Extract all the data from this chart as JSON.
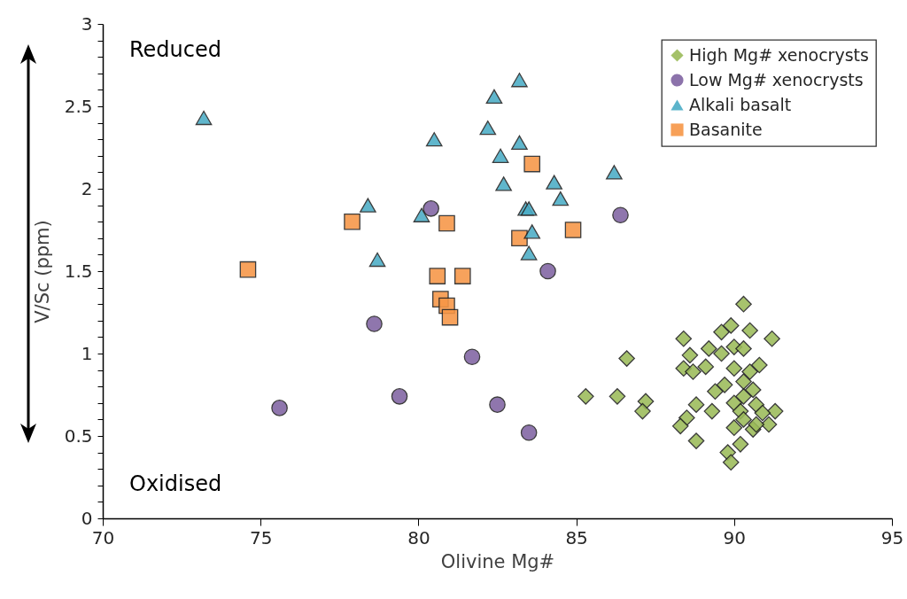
{
  "chart_data": {
    "type": "scatter",
    "xlabel": "Olivine Mg#",
    "ylabel": "V/Sc (ppm)",
    "xlim": [
      70,
      95
    ],
    "xticks": [
      70,
      75,
      80,
      85,
      90,
      95
    ],
    "ylim": [
      0,
      3
    ],
    "yticks": [
      0,
      {
        "value": 0.1,
        "label": null
      },
      {
        "value": 0.2,
        "label": null
      },
      {
        "value": 0.3,
        "label": null
      },
      {
        "value": 0.4,
        "label": null
      },
      0.5,
      {
        "value": 0.6,
        "label": null
      },
      {
        "value": 0.7,
        "label": null
      },
      {
        "value": 0.8,
        "label": null
      },
      {
        "value": 0.9,
        "label": null
      },
      1,
      {
        "value": 1.1,
        "label": null
      },
      {
        "value": 1.2,
        "label": null
      },
      {
        "value": 1.3,
        "label": null
      },
      {
        "value": 1.4,
        "label": null
      },
      1.5,
      {
        "value": 1.6,
        "label": null
      },
      {
        "value": 1.7,
        "label": null
      },
      {
        "value": 1.8,
        "label": null
      },
      {
        "value": 1.9,
        "label": null
      },
      2,
      {
        "value": 2.1,
        "label": null
      },
      {
        "value": 2.2,
        "label": null
      },
      {
        "value": 2.3,
        "label": null
      },
      {
        "value": 2.4,
        "label": null
      },
      2.5,
      {
        "value": 2.6,
        "label": null
      },
      {
        "value": 2.7,
        "label": null
      },
      {
        "value": 2.8,
        "label": null
      },
      {
        "value": 2.9,
        "label": null
      },
      3
    ],
    "grid": false,
    "legend": "top right",
    "annotations": [
      "Reduced",
      "Oxidised"
    ],
    "series": [
      {
        "name": "High Mg# xenocrysts",
        "color": "#9bbb59",
        "marker": "diamond",
        "x": [
          90.3,
          89.9,
          89.6,
          90.5,
          91.2,
          88.4,
          89.2,
          89.6,
          90.0,
          90.3,
          88.6,
          86.6,
          90.8,
          89.1,
          88.4,
          88.7,
          90.0,
          90.5,
          90.3,
          89.7,
          89.4,
          90.6,
          90.3,
          85.3,
          86.3,
          87.2,
          87.1,
          88.8,
          89.3,
          90.0,
          90.7,
          91.3,
          90.2,
          90.9,
          90.3,
          91.1,
          90.6,
          90.0,
          88.5,
          88.3,
          88.8,
          90.2,
          89.8,
          89.9,
          90.7
        ],
        "values": [
          1.3,
          1.17,
          1.13,
          1.14,
          1.09,
          1.09,
          1.03,
          1.0,
          1.04,
          1.03,
          0.99,
          0.97,
          0.93,
          0.92,
          0.91,
          0.89,
          0.91,
          0.89,
          0.83,
          0.81,
          0.77,
          0.78,
          0.74,
          0.74,
          0.74,
          0.71,
          0.65,
          0.69,
          0.65,
          0.7,
          0.69,
          0.65,
          0.65,
          0.64,
          0.6,
          0.57,
          0.54,
          0.55,
          0.61,
          0.56,
          0.47,
          0.45,
          0.4,
          0.34,
          0.57
        ]
      },
      {
        "name": "Low Mg# xenocrysts",
        "color": "#8064a2",
        "marker": "circle",
        "x": [
          80.4,
          86.4,
          84.1,
          78.6,
          81.7,
          75.6,
          79.4,
          82.5,
          83.5
        ],
        "values": [
          1.88,
          1.84,
          1.5,
          1.18,
          0.98,
          0.67,
          0.74,
          0.69,
          0.52
        ]
      },
      {
        "name": "Alkali basalt",
        "color": "#4bacc6",
        "marker": "triangle",
        "x": [
          73.2,
          80.5,
          82.4,
          83.2,
          82.2,
          83.2,
          82.6,
          82.7,
          78.4,
          80.1,
          78.7,
          83.4,
          83.5,
          84.3,
          84.5,
          83.6,
          83.5,
          86.2
        ],
        "values": [
          2.43,
          2.3,
          2.56,
          2.66,
          2.37,
          2.28,
          2.2,
          2.03,
          1.9,
          1.84,
          1.57,
          1.88,
          1.88,
          2.04,
          1.94,
          1.74,
          1.61,
          2.1
        ]
      },
      {
        "name": "Basanite",
        "color": "#f79646",
        "marker": "square",
        "x": [
          74.6,
          77.9,
          80.9,
          83.6,
          83.2,
          84.9,
          80.6,
          81.4,
          80.7,
          80.9,
          81.0
        ],
        "values": [
          1.51,
          1.8,
          1.79,
          2.15,
          1.7,
          1.75,
          1.47,
          1.47,
          1.33,
          1.29,
          1.22
        ]
      }
    ]
  }
}
